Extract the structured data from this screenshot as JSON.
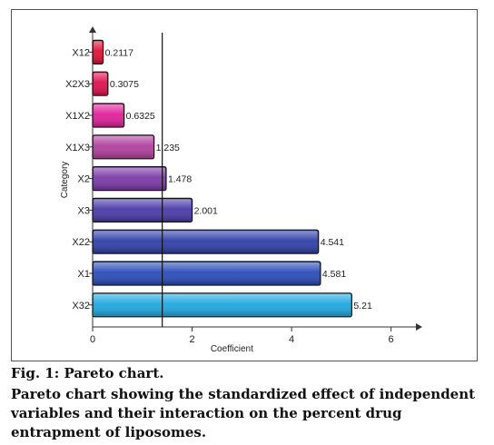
{
  "chart_data": {
    "type": "bar",
    "orientation": "horizontal",
    "categories": [
      "X12",
      "X2X3",
      "X1X2",
      "X1X3",
      "X2",
      "X3",
      "X22",
      "X1",
      "X32"
    ],
    "values": [
      0.2117,
      0.3075,
      0.6325,
      1.235,
      1.478,
      2.001,
      4.541,
      4.581,
      5.21
    ],
    "value_labels": [
      "0.2117",
      "0.3075",
      "0.6325",
      "1.235",
      "1.478",
      "2.001",
      "4.541",
      "4.581",
      "5.21"
    ],
    "bar_colors": [
      "#e0103a",
      "#e01050",
      "#e0209a",
      "#b0409c",
      "#7a3aa8",
      "#4a3aa8",
      "#2f3fa8",
      "#2a4cb8",
      "#1fa8e0"
    ],
    "reference_line": 1.4,
    "xlim": [
      0,
      6.5
    ],
    "xticks": [
      0,
      2,
      4,
      6
    ],
    "xlabel": "Coefficient",
    "ylabel": "Category",
    "grid": false
  },
  "caption": {
    "title": "Fig. 1: Pareto chart.",
    "body": "Pareto chart showing the standardized effect of independent variables and their interaction on the percent drug entrapment of liposomes."
  }
}
